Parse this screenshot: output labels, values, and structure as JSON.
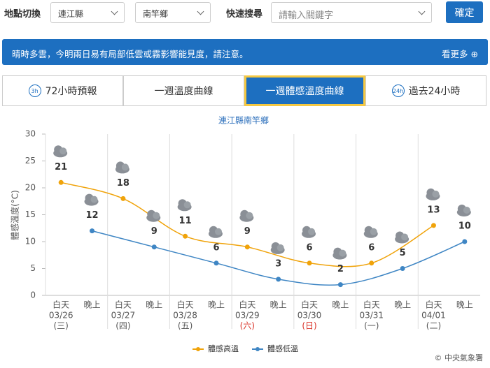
{
  "toolbar": {
    "location_label": "地點切換",
    "county": "連江縣",
    "township": "南竿鄉",
    "search_label": "快速搜尋",
    "search_placeholder": "請輸入關鍵字",
    "confirm": "確定"
  },
  "alert": {
    "text": "晴時多雲，今明兩日易有局部低雲或霧影響能見度，請注意。",
    "more": "看更多"
  },
  "tabs": [
    {
      "icon": "3h",
      "label": "72小時預報"
    },
    {
      "label": "一週溫度曲線"
    },
    {
      "label": "一週體感溫度曲線",
      "active": true
    },
    {
      "icon": "24h",
      "label": "過去24小時"
    }
  ],
  "chart_data": {
    "type": "line",
    "title": "連江縣南竿鄉",
    "y_label": "體感溫度(°C)",
    "categories": [
      "白天",
      "晚上",
      "白天",
      "晚上",
      "白天",
      "晚上",
      "白天",
      "晚上",
      "白天",
      "晚上",
      "白天",
      "晚上",
      "白天",
      "晚上"
    ],
    "dates": [
      "03/26",
      "03/27",
      "03/28",
      "03/29",
      "03/30",
      "03/31",
      "04/01"
    ],
    "weekdays": [
      "(三)",
      "(四)",
      "(五)",
      "(六)",
      "(日)",
      "(一)",
      "(二)"
    ],
    "weekday_colors": [
      "#555555",
      "#555555",
      "#555555",
      "#d93025",
      "#d93025",
      "#555555",
      "#555555"
    ],
    "series": [
      {
        "name": "體感高溫",
        "color": "#f0a30a",
        "values": [
          21,
          18,
          11,
          9,
          6,
          6,
          13
        ]
      },
      {
        "name": "體感低溫",
        "color": "#3f86c4",
        "values": [
          12,
          9,
          6,
          3,
          2,
          5,
          10
        ]
      }
    ],
    "ylim": [
      0,
      30
    ],
    "yticks": [
      0,
      5,
      10,
      15,
      20,
      25,
      30
    ],
    "smooth": true
  },
  "footer": {
    "copyright": "© 中央氣象署"
  }
}
